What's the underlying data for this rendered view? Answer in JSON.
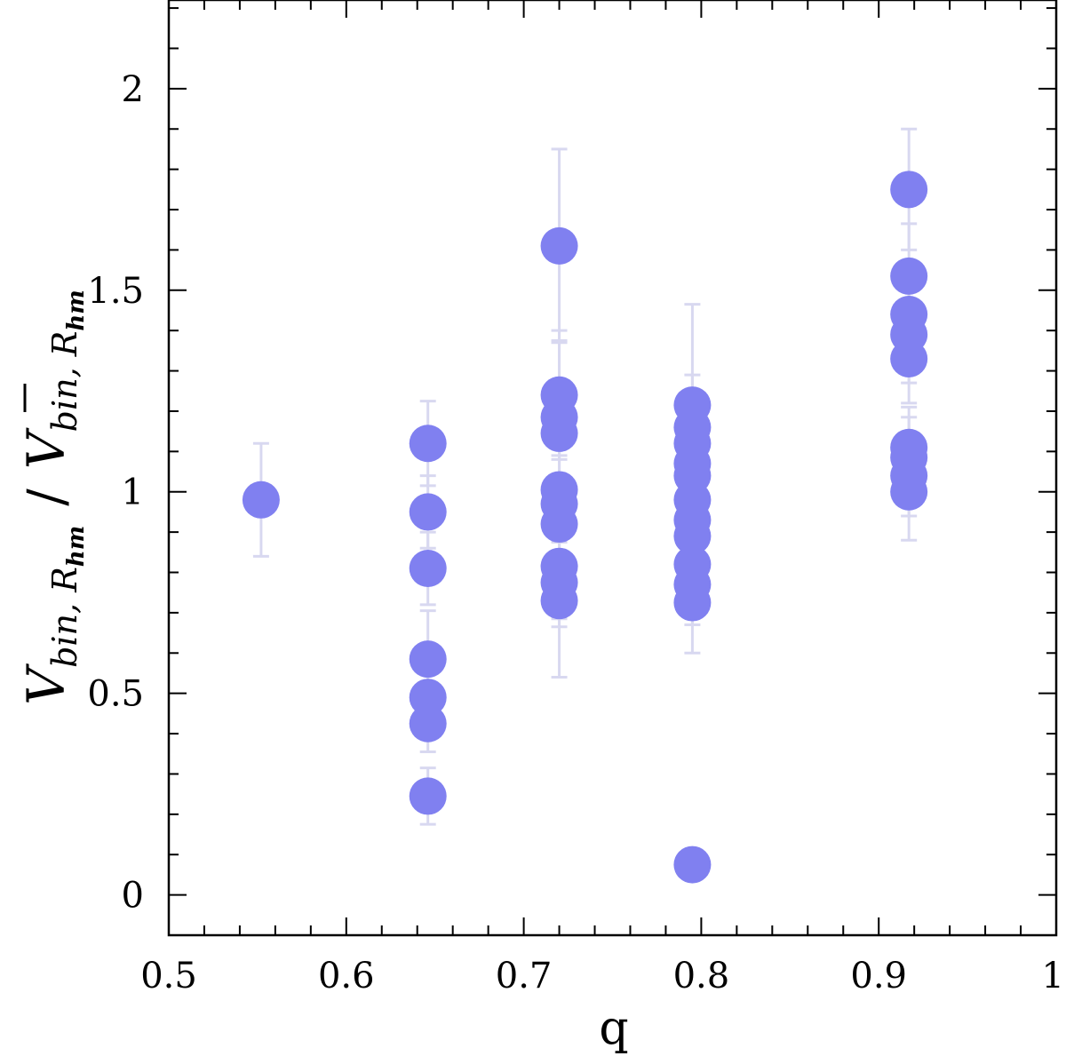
{
  "chart_data": {
    "type": "scatter",
    "xlabel": "q",
    "ylabel": {
      "num_main": "V",
      "num_sub": "bin, R",
      "num_subsub": "hm",
      "slash": "/",
      "den_main": "V",
      "den_sub": "bin, R",
      "den_subsub": "hm"
    },
    "xlim": [
      0.5,
      1.0
    ],
    "ylim": [
      -0.1,
      2.22
    ],
    "xticks": [
      {
        "value": 0.5,
        "label": "0.5"
      },
      {
        "value": 0.6,
        "label": "0.6"
      },
      {
        "value": 0.7,
        "label": "0.7"
      },
      {
        "value": 0.8,
        "label": "0.8"
      },
      {
        "value": 0.9,
        "label": "0.9"
      },
      {
        "value": 1.0,
        "label": "1"
      }
    ],
    "yticks": [
      {
        "value": 0,
        "label": "0"
      },
      {
        "value": 0.5,
        "label": "0.5"
      },
      {
        "value": 1,
        "label": "1"
      },
      {
        "value": 1.5,
        "label": "1.5"
      },
      {
        "value": 2,
        "label": "2"
      }
    ],
    "x_minor_step": 0.02,
    "y_minor_step": 0.1,
    "marker_color": "#8080f0",
    "errorbar_color": "#d8d8f0",
    "points": [
      {
        "x": 0.552,
        "y": 0.98,
        "err": 0.14
      },
      {
        "x": 0.646,
        "y": 1.12,
        "err": 0.105
      },
      {
        "x": 0.646,
        "y": 0.95,
        "err": 0.09
      },
      {
        "x": 0.646,
        "y": 0.81,
        "err": 0.09
      },
      {
        "x": 0.646,
        "y": 0.585,
        "err": 0.12
      },
      {
        "x": 0.646,
        "y": 0.49,
        "err": 0.1
      },
      {
        "x": 0.646,
        "y": 0.425,
        "err": 0.07
      },
      {
        "x": 0.646,
        "y": 0.245,
        "err": 0.07
      },
      {
        "x": 0.72,
        "y": 1.61,
        "err": 0.24
      },
      {
        "x": 0.72,
        "y": 1.24,
        "err": 0.16
      },
      {
        "x": 0.72,
        "y": 1.185,
        "err": 0.19
      },
      {
        "x": 0.72,
        "y": 1.145,
        "err": 0.13
      },
      {
        "x": 0.72,
        "y": 1.005,
        "err": 0.13
      },
      {
        "x": 0.72,
        "y": 0.97,
        "err": 0.12
      },
      {
        "x": 0.72,
        "y": 0.92,
        "err": 0.12
      },
      {
        "x": 0.72,
        "y": 0.815,
        "err": 0.13
      },
      {
        "x": 0.72,
        "y": 0.775,
        "err": 0.11
      },
      {
        "x": 0.72,
        "y": 0.73,
        "err": 0.19
      },
      {
        "x": 0.795,
        "y": 1.215,
        "err": 0.25
      },
      {
        "x": 0.795,
        "y": 1.16,
        "err": 0.13
      },
      {
        "x": 0.795,
        "y": 1.12,
        "err": 0.13
      },
      {
        "x": 0.795,
        "y": 1.07,
        "err": 0.12
      },
      {
        "x": 0.795,
        "y": 1.04,
        "err": 0.12
      },
      {
        "x": 0.795,
        "y": 0.98,
        "err": 0.12
      },
      {
        "x": 0.795,
        "y": 0.93,
        "err": 0.11
      },
      {
        "x": 0.795,
        "y": 0.89,
        "err": 0.11
      },
      {
        "x": 0.795,
        "y": 0.82,
        "err": 0.1
      },
      {
        "x": 0.795,
        "y": 0.77,
        "err": 0.1
      },
      {
        "x": 0.795,
        "y": 0.725,
        "err": 0.125
      },
      {
        "x": 0.795,
        "y": 0.075,
        "err": 0.0
      },
      {
        "x": 0.917,
        "y": 1.75,
        "err": 0.15
      },
      {
        "x": 0.917,
        "y": 1.535,
        "err": 0.13
      },
      {
        "x": 0.917,
        "y": 1.44,
        "err": 0.12
      },
      {
        "x": 0.917,
        "y": 1.39,
        "err": 0.12
      },
      {
        "x": 0.917,
        "y": 1.33,
        "err": 0.11
      },
      {
        "x": 0.917,
        "y": 1.11,
        "err": 0.1
      },
      {
        "x": 0.917,
        "y": 1.085,
        "err": 0.1
      },
      {
        "x": 0.917,
        "y": 1.04,
        "err": 0.1
      },
      {
        "x": 0.917,
        "y": 1.0,
        "err": 0.12
      }
    ]
  }
}
